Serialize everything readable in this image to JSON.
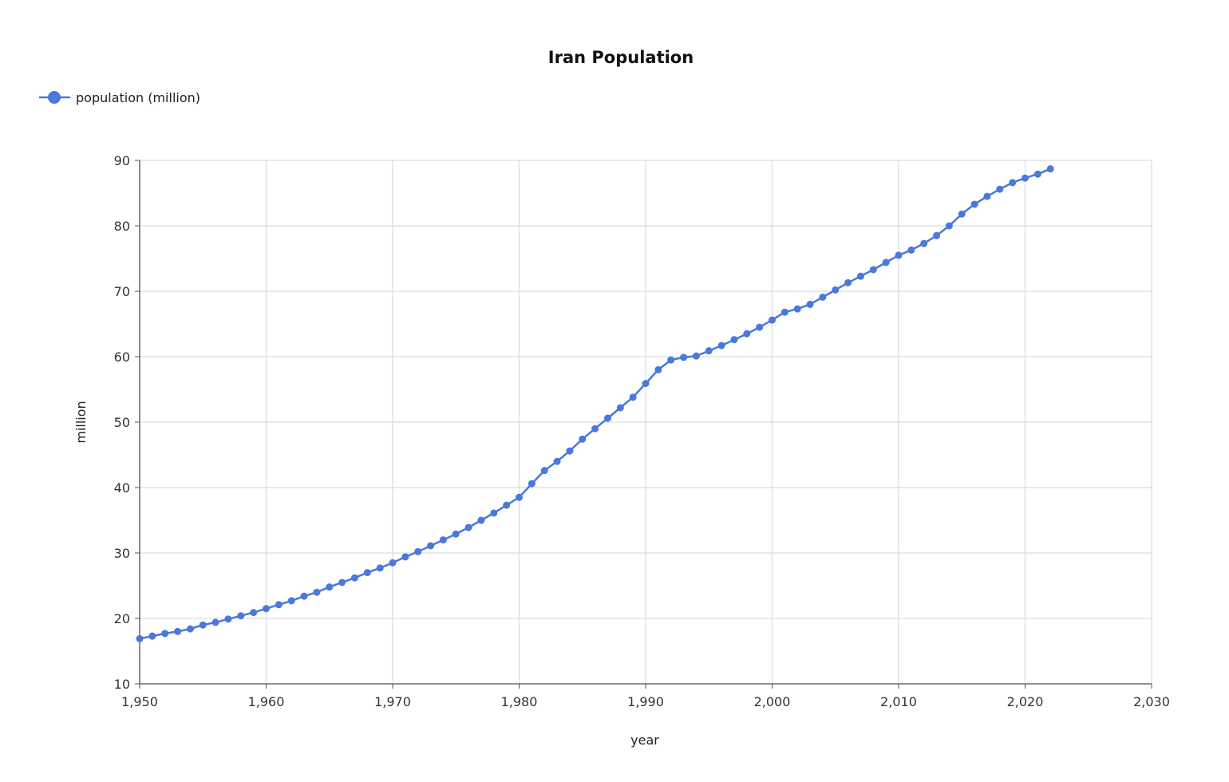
{
  "chart_data": {
    "type": "line",
    "title": "Iran Population",
    "xlabel": "year",
    "ylabel": "million",
    "xlim": [
      1950,
      2030
    ],
    "ylim": [
      10,
      90
    ],
    "xticks": [
      1950,
      1960,
      1970,
      1980,
      1990,
      2000,
      2010,
      2020,
      2030
    ],
    "xtick_labels": [
      "1,950",
      "1,960",
      "1,970",
      "1,980",
      "1,990",
      "2,000",
      "2,010",
      "2,020",
      "2,030"
    ],
    "yticks": [
      10,
      20,
      30,
      40,
      50,
      60,
      70,
      80,
      90
    ],
    "ytick_labels": [
      "10",
      "20",
      "30",
      "40",
      "50",
      "60",
      "70",
      "80",
      "90"
    ],
    "grid": true,
    "legend_position": "top-left",
    "series": [
      {
        "name": "population (million)",
        "color": "#4a78db",
        "x": [
          1950,
          1951,
          1952,
          1953,
          1954,
          1955,
          1956,
          1957,
          1958,
          1959,
          1960,
          1961,
          1962,
          1963,
          1964,
          1965,
          1966,
          1967,
          1968,
          1969,
          1970,
          1971,
          1972,
          1973,
          1974,
          1975,
          1976,
          1977,
          1978,
          1979,
          1980,
          1981,
          1982,
          1983,
          1984,
          1985,
          1986,
          1987,
          1988,
          1989,
          1990,
          1991,
          1992,
          1993,
          1994,
          1995,
          1996,
          1997,
          1998,
          1999,
          2000,
          2001,
          2002,
          2003,
          2004,
          2005,
          2006,
          2007,
          2008,
          2009,
          2010,
          2011,
          2012,
          2013,
          2014,
          2015,
          2016,
          2017,
          2018,
          2019,
          2020,
          2021,
          2022
        ],
        "values": [
          16.9,
          17.3,
          17.7,
          18.0,
          18.4,
          19.0,
          19.4,
          19.9,
          20.4,
          20.9,
          21.5,
          22.1,
          22.7,
          23.4,
          24.0,
          24.8,
          25.5,
          26.2,
          27.0,
          27.7,
          28.5,
          29.4,
          30.2,
          31.1,
          32.0,
          32.9,
          33.9,
          35.0,
          36.1,
          37.3,
          38.5,
          40.6,
          42.6,
          44.0,
          45.6,
          47.4,
          49.0,
          50.6,
          52.2,
          53.8,
          55.9,
          58.0,
          59.5,
          59.9,
          60.1,
          60.9,
          61.7,
          62.6,
          63.5,
          64.5,
          65.6,
          66.8,
          67.3,
          68.0,
          69.1,
          70.2,
          71.3,
          72.3,
          73.3,
          74.4,
          75.5,
          76.3,
          77.3,
          78.5,
          80.0,
          81.8,
          83.3,
          84.5,
          85.6,
          86.6,
          87.3,
          87.9,
          88.7
        ]
      }
    ]
  }
}
